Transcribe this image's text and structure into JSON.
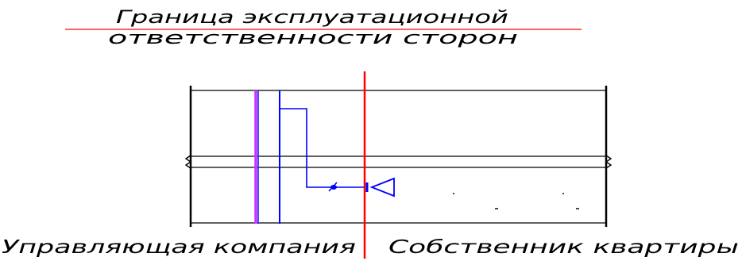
{
  "diagram": {
    "legend": {
      "line1": "Граница эксплуатационной",
      "line2": "ответственности сторон"
    },
    "labels": {
      "left_party": "Управляющая компания",
      "right_party": "Собственник квартиры"
    },
    "colors": {
      "boundary_line": "#ff0000",
      "riser_pipe": "#0000ff",
      "riser_pipe_secondary": "#cc33ff",
      "walls": "#000000",
      "background": "#ffffff"
    }
  }
}
